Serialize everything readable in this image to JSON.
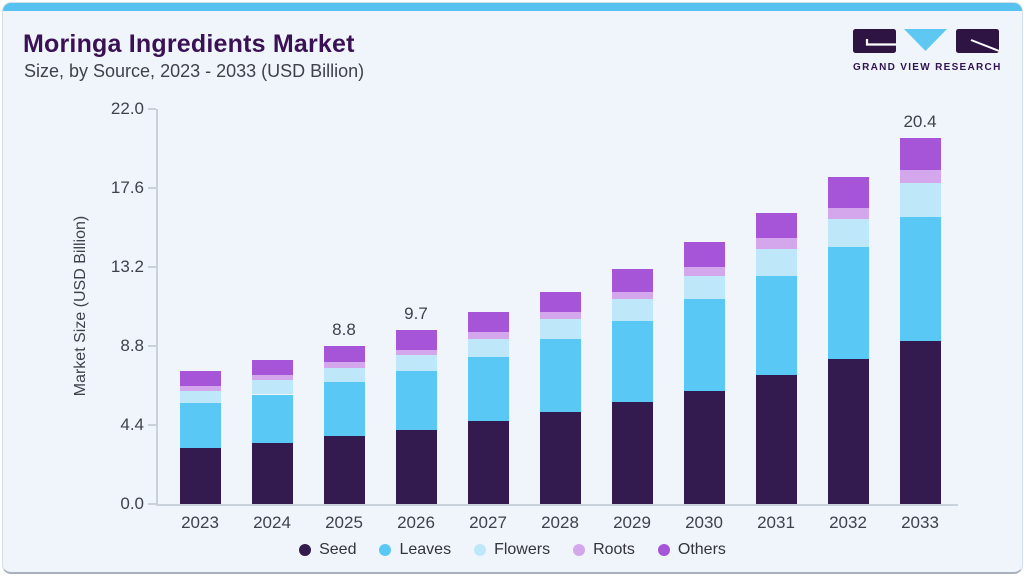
{
  "header": {
    "title": "Moringa Ingredients Market",
    "subtitle": "Size, by Source, 2023 - 2033 (USD Billion)"
  },
  "logo": {
    "text": "GRAND VIEW RESEARCH"
  },
  "colors": {
    "accent_bar": "#57c2ef",
    "title_purple": "#3b1156",
    "body_text": "#3f424b",
    "axis_line": "#c9d2db",
    "card_background": "#eff5fa",
    "logo_dark": "#2d1443",
    "logo_triangle": "#5fc8f2",
    "seed": "#341b4f",
    "leaves": "#5ac8f5",
    "flowers": "#bfe7fa",
    "roots": "#d4a7ec",
    "others": "#a655d9"
  },
  "chart_data": {
    "type": "bar",
    "stacked": true,
    "title": "Moringa Ingredients Market Size, by Source, 2023 - 2033 (USD Billion)",
    "xlabel": "",
    "ylabel": "Market Size (USD Billion)",
    "ylim": [
      0,
      22
    ],
    "y_ticks": [
      "0.0",
      "4.4",
      "8.8",
      "13.2",
      "17.6",
      "22.0"
    ],
    "grid": false,
    "legend_position": "bottom",
    "categories": [
      "2023",
      "2024",
      "2025",
      "2026",
      "2027",
      "2028",
      "2029",
      "2030",
      "2031",
      "2032",
      "2033"
    ],
    "series": [
      {
        "name": "Seed",
        "color_key": "seed",
        "values": [
          3.1,
          3.4,
          3.8,
          4.1,
          4.6,
          5.1,
          5.7,
          6.3,
          7.2,
          8.1,
          9.1
        ]
      },
      {
        "name": "Leaves",
        "color_key": "leaves",
        "values": [
          2.5,
          2.7,
          3.0,
          3.3,
          3.6,
          4.1,
          4.5,
          5.1,
          5.5,
          6.2,
          6.9
        ]
      },
      {
        "name": "Flowers",
        "color_key": "flowers",
        "values": [
          0.7,
          0.8,
          0.8,
          0.9,
          1.0,
          1.1,
          1.2,
          1.3,
          1.5,
          1.6,
          1.9
        ]
      },
      {
        "name": "Roots",
        "color_key": "roots",
        "values": [
          0.3,
          0.3,
          0.3,
          0.3,
          0.4,
          0.4,
          0.4,
          0.5,
          0.6,
          0.6,
          0.7
        ]
      },
      {
        "name": "Others",
        "color_key": "others",
        "values": [
          0.8,
          0.8,
          0.9,
          1.1,
          1.1,
          1.1,
          1.3,
          1.4,
          1.4,
          1.7,
          1.8
        ]
      }
    ],
    "totals": [
      7.4,
      8.0,
      8.8,
      9.7,
      10.7,
      11.8,
      13.1,
      14.6,
      16.2,
      18.2,
      20.4
    ],
    "data_labels": {
      "2025": "8.8",
      "2026": "9.7",
      "2033": "20.4"
    }
  }
}
